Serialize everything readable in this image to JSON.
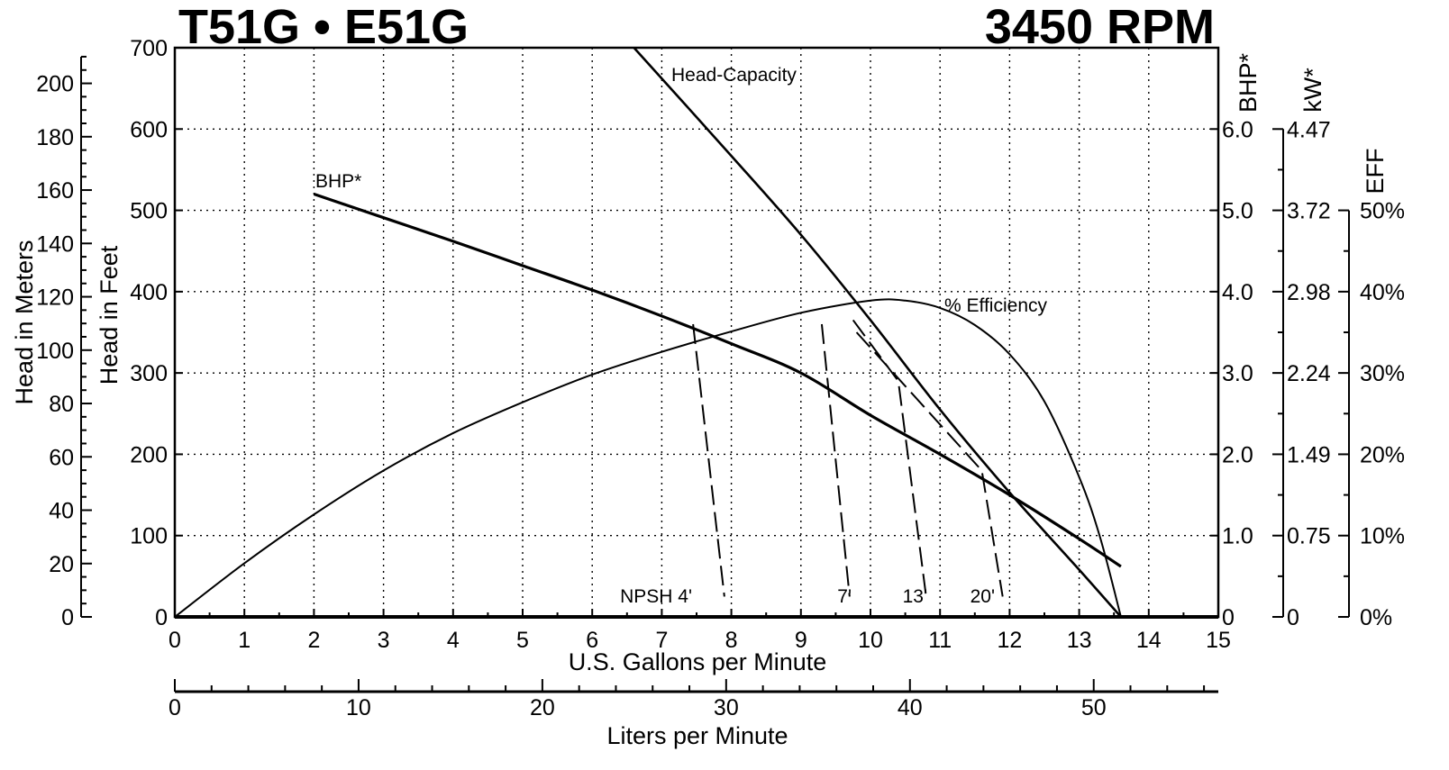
{
  "title_left": "T51G • E51G",
  "title_right": "3450 RPM",
  "chart_data": {
    "type": "line",
    "x_axis": {
      "label": "U.S. Gallons per Minute",
      "range": [
        0,
        15
      ],
      "ticks": [
        0,
        1,
        2,
        3,
        4,
        5,
        6,
        7,
        8,
        9,
        10,
        11,
        12,
        13,
        14,
        15
      ]
    },
    "x_axis_secondary": {
      "label": "Liters per Minute",
      "ticks": [
        0,
        10,
        20,
        30,
        40,
        50
      ],
      "range": [
        0,
        56.78
      ]
    },
    "y_left_feet": {
      "label": "Head in Feet",
      "range": [
        0,
        700
      ],
      "ticks": [
        0,
        100,
        200,
        300,
        400,
        500,
        600,
        700
      ]
    },
    "y_left_meters": {
      "label": "Head in Meters",
      "ticks": [
        0,
        20,
        40,
        60,
        80,
        100,
        120,
        140,
        160,
        180,
        200
      ]
    },
    "y_right_bhp": {
      "label": "BHP*",
      "ticks": [
        "0",
        "1.0",
        "2.0",
        "3.0",
        "4.0",
        "5.0",
        "6.0"
      ]
    },
    "y_right_kw": {
      "label": "kW*",
      "ticks": [
        "0",
        "0.75",
        "1.49",
        "2.24",
        "2.98",
        "3.72",
        "4.47"
      ]
    },
    "y_right_eff": {
      "label": "EFF",
      "ticks": [
        "0%",
        "10%",
        "20%",
        "30%",
        "40%",
        "50%"
      ]
    },
    "grid": true,
    "series": [
      {
        "name": "Head-Capacity",
        "style": "solid",
        "x": [
          6.6,
          8,
          9,
          10,
          11,
          12,
          13,
          13.6
        ],
        "y": [
          700,
          567,
          470,
          365,
          255,
          153,
          58,
          0
        ]
      },
      {
        "name": "BHP*",
        "style": "solid",
        "axis": "bhp",
        "x": [
          2,
          3,
          4,
          5,
          6,
          7,
          8,
          9,
          10,
          11,
          12,
          13,
          13.6
        ],
        "y": [
          5.2,
          4.91,
          4.62,
          4.32,
          4.02,
          3.7,
          3.36,
          3.0,
          2.48,
          2.0,
          1.5,
          0.96,
          0.62
        ]
      },
      {
        "name": "% Efficiency",
        "style": "solid",
        "axis": "eff",
        "x": [
          0,
          1,
          2,
          3,
          4,
          5,
          6,
          7,
          8,
          9,
          10,
          10.5,
          11,
          11.5,
          12,
          12.5,
          13,
          13.3,
          13.6
        ],
        "y": [
          0,
          6.6,
          12.6,
          18,
          22.6,
          26.4,
          29.8,
          32.6,
          35.1,
          37.4,
          38.9,
          38.9,
          38,
          35.9,
          32.3,
          26.5,
          17.2,
          9.8,
          0
        ]
      }
    ],
    "npsh_curves": [
      {
        "label": "NPSH 4'",
        "x": [
          7.45,
          7.9
        ],
        "y": [
          360,
          25
        ]
      },
      {
        "label": "7'",
        "x": [
          9.3,
          9.7
        ],
        "y": [
          360,
          25
        ]
      },
      {
        "label": "13'",
        "x": [
          9.75,
          10.4,
          10.8
        ],
        "y": [
          365,
          290,
          25
        ]
      },
      {
        "label": "20'",
        "x": [
          9.8,
          11.6,
          11.9
        ],
        "y": [
          350,
          180,
          25
        ]
      }
    ]
  }
}
